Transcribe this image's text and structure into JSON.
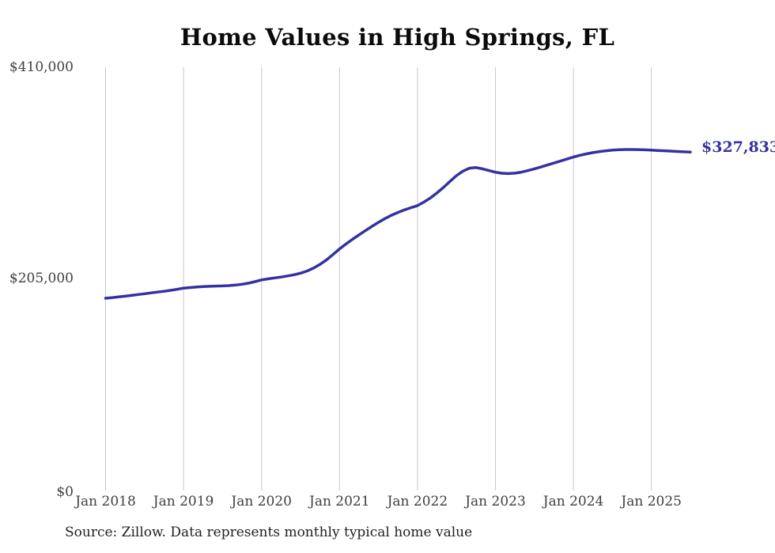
{
  "title": "Home Values in High Springs, FL",
  "end_label": "$327,833",
  "source_note": "Source: Zillow. Data represents monthly typical home value",
  "colors": {
    "line": "#3531a2",
    "grid": "#c9c9c9",
    "tick_text": "#3f3f3f",
    "title_text": "#0b0b0b",
    "source_text": "#1f1f1f",
    "background": "#ffffff"
  },
  "chart_data": {
    "type": "line",
    "title": "Home Values in High Springs, FL",
    "x_unit": "month",
    "x_start": "2018-01",
    "x_end": "2025-07",
    "x_tick_labels": [
      "Jan 2018",
      "Jan 2019",
      "Jan 2020",
      "Jan 2021",
      "Jan 2022",
      "Jan 2023",
      "Jan 2024",
      "Jan 2025"
    ],
    "y_tick_labels": [
      "$410,000",
      "$205,000",
      "$0"
    ],
    "ylim": [
      0,
      410000
    ],
    "grid": "vertical",
    "legend": "none",
    "latest_value": 327833,
    "latest_value_label": "$327,833",
    "series": [
      {
        "name": "Typical home value",
        "values": [
          186200,
          186800,
          187500,
          188200,
          189000,
          189800,
          190600,
          191400,
          192200,
          193000,
          193900,
          194900,
          196000,
          196600,
          197100,
          197500,
          197800,
          198000,
          198200,
          198500,
          199000,
          199800,
          200900,
          202300,
          204000,
          205000,
          205900,
          206800,
          207800,
          209000,
          210500,
          212600,
          215400,
          219000,
          223400,
          228600,
          234000,
          238800,
          243300,
          247600,
          251800,
          255900,
          259800,
          263400,
          266600,
          269400,
          271800,
          274000,
          276000,
          279400,
          283400,
          288200,
          293600,
          299400,
          305000,
          309400,
          312200,
          312800,
          311600,
          309900,
          308300,
          307300,
          307000,
          307400,
          308400,
          309900,
          311600,
          313400,
          315300,
          317200,
          319100,
          321000,
          323000,
          324700,
          326100,
          327300,
          328300,
          329100,
          329700,
          330100,
          330300,
          330300,
          330200,
          330000,
          329700,
          329400,
          329100,
          328800,
          328400,
          328100,
          327833
        ]
      }
    ]
  }
}
